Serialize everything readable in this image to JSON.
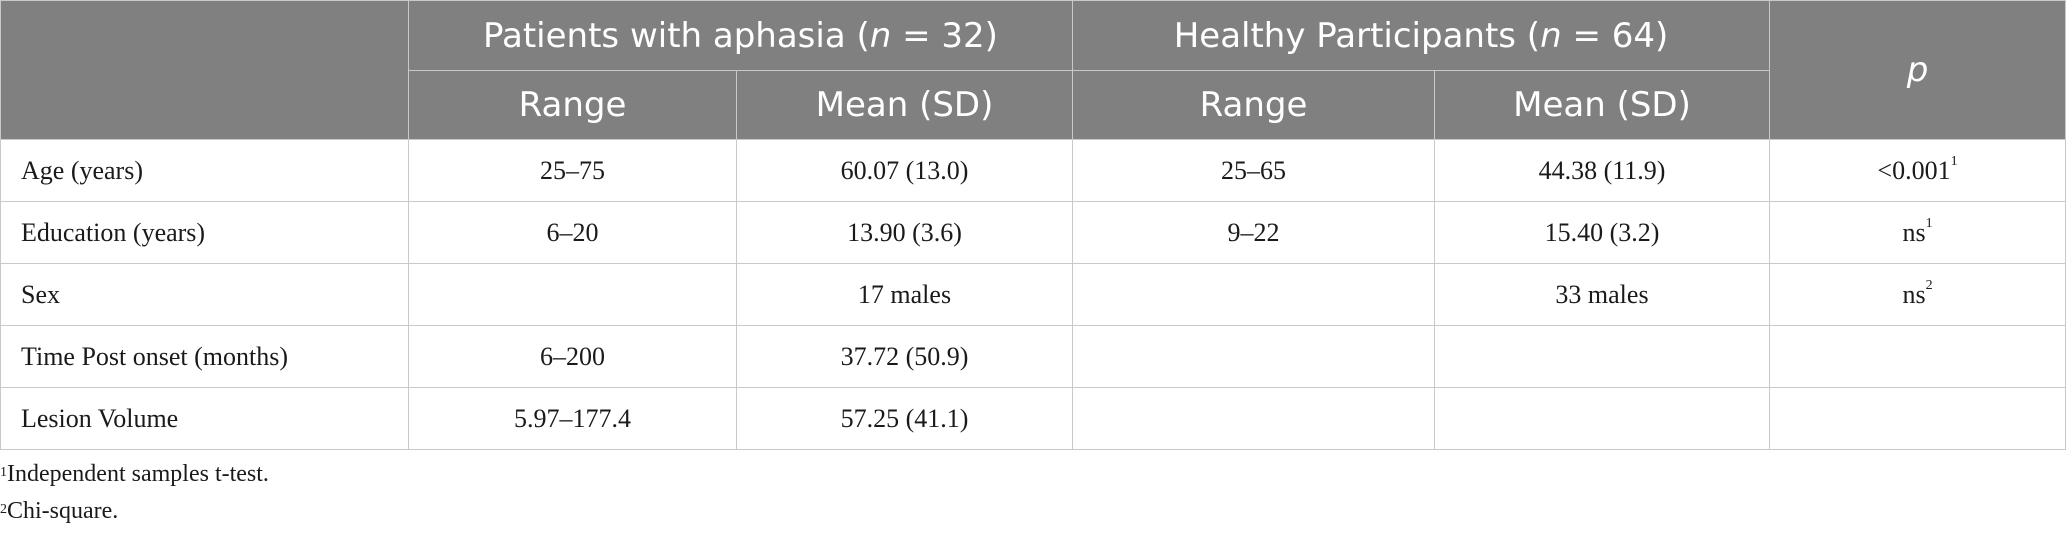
{
  "header": {
    "group1_pre": "Patients with aphasia (",
    "group1_n": "n",
    "group1_post": " = 32)",
    "group2_pre": "Healthy Participants (",
    "group2_n": "n",
    "group2_post": " = 64)",
    "p_label": "p",
    "range_label": "Range",
    "mean_label": "Mean (SD)"
  },
  "rows": [
    {
      "label": "Age (years)",
      "p_range": "25–75",
      "p_mean": "60.07 (13.0)",
      "h_range": "25–65",
      "h_mean": "44.38 (11.9)",
      "p": "<0.001",
      "p_note": "1"
    },
    {
      "label": "Education (years)",
      "p_range": "6–20",
      "p_mean": "13.90 (3.6)",
      "h_range": "9–22",
      "h_mean": "15.40 (3.2)",
      "p": "ns",
      "p_note": "1"
    },
    {
      "label": "Sex",
      "p_range": "",
      "p_mean": "17 males",
      "h_range": "",
      "h_mean": "33 males",
      "p": "ns",
      "p_note": "2"
    },
    {
      "label": "Time Post onset (months)",
      "p_range": "6–200",
      "p_mean": "37.72 (50.9)",
      "h_range": "",
      "h_mean": "",
      "p": "",
      "p_note": ""
    },
    {
      "label": "Lesion Volume",
      "p_range": "5.97–177.4",
      "p_mean": "57.25 (41.1)",
      "h_range": "",
      "h_mean": "",
      "p": "",
      "p_note": ""
    }
  ],
  "footnotes": [
    {
      "mark": "1",
      "text": "Independent samples t-test."
    },
    {
      "mark": "2",
      "text": "Chi-square."
    }
  ]
}
